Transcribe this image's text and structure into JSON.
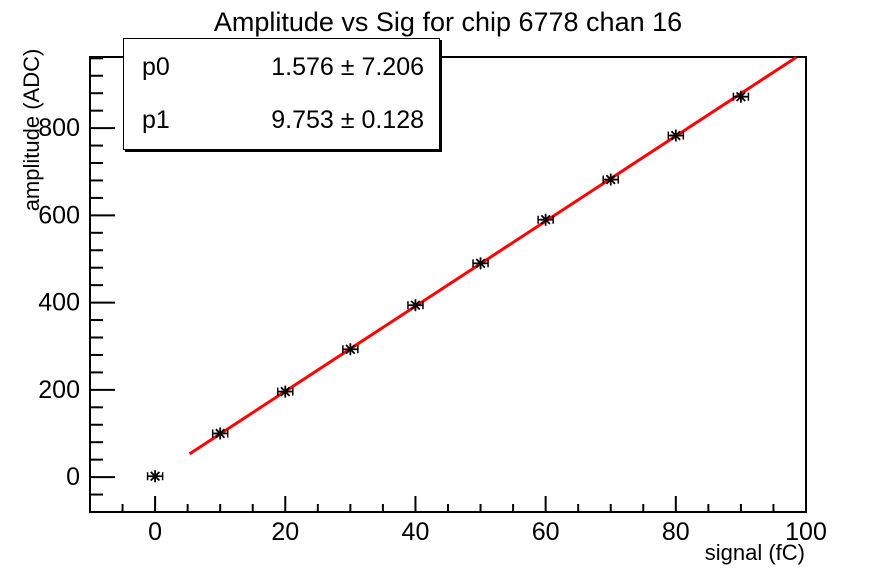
{
  "canvas": {
    "background": "#ffffff",
    "frame_color": "#000000"
  },
  "stats_box": {
    "rows": [
      {
        "label": "p0",
        "value": "1.576 ± 7.206"
      },
      {
        "label": "p1",
        "value": "9.753 ± 0.128"
      }
    ]
  },
  "chart_data": {
    "type": "scatter",
    "title": "Amplitude vs Sig for chip 6778 chan 16",
    "xlabel": "signal (fC)",
    "ylabel": "amplitude (ADC)",
    "xlim": [
      -10,
      100
    ],
    "ylim": [
      -80,
      963
    ],
    "x_ticks": [
      0,
      20,
      40,
      60,
      80,
      100
    ],
    "y_ticks": [
      0,
      200,
      400,
      600,
      800
    ],
    "x_minor_step": 5,
    "y_minor_step": 40,
    "grid": false,
    "legend": "none",
    "points": {
      "x": [
        0,
        10,
        20,
        30,
        40,
        50,
        60,
        70,
        80,
        90
      ],
      "y": [
        2,
        100,
        196,
        293,
        394,
        490,
        590,
        682,
        783,
        872
      ],
      "x_err": 1.0,
      "marker": "asterisk",
      "color": "#000000"
    },
    "fit_line": {
      "p0": 1.576,
      "p0_err": 7.206,
      "p1": 9.753,
      "p1_err": 0.128,
      "x_start": 5.3,
      "x_end": 98.5,
      "color": "#ff0000"
    }
  }
}
